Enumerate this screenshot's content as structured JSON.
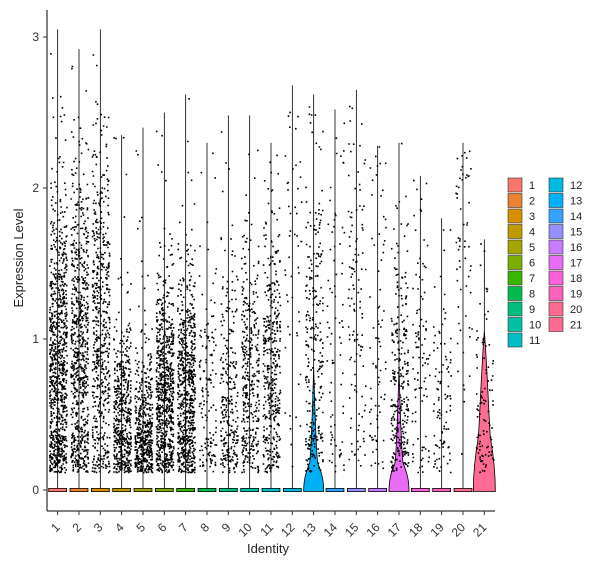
{
  "chart_data": {
    "type": "violin",
    "xlabel": "Identity",
    "ylabel": "Expression Level",
    "categories": [
      "1",
      "2",
      "3",
      "4",
      "5",
      "6",
      "7",
      "8",
      "9",
      "10",
      "11",
      "12",
      "13",
      "14",
      "15",
      "16",
      "17",
      "18",
      "19",
      "20",
      "21"
    ],
    "colors": [
      "#F8766D",
      "#EA8331",
      "#D89000",
      "#C09B00",
      "#A3A500",
      "#7CAE00",
      "#39B600",
      "#00BB4E",
      "#00BF7D",
      "#00C1A3",
      "#00BFC4",
      "#00BAE0",
      "#00B0F6",
      "#35A2FF",
      "#9590FF",
      "#C77CFF",
      "#E76BF3",
      "#FA62DB",
      "#FF62BC",
      "#FF6C91",
      "#FF6C91"
    ],
    "yticks": [
      0,
      1,
      2,
      3
    ],
    "ylim": [
      -0.15,
      3.15
    ],
    "series": [
      {
        "name": "1",
        "max": 3.05,
        "density": 1.0,
        "center": 0.8,
        "spread": 0.55
      },
      {
        "name": "2",
        "max": 2.92,
        "density": 0.8,
        "center": 0.9,
        "spread": 0.6
      },
      {
        "name": "3",
        "max": 3.05,
        "density": 0.6,
        "center": 1.0,
        "spread": 0.65
      },
      {
        "name": "4",
        "max": 2.35,
        "density": 0.55,
        "center": 0.45,
        "spread": 0.35
      },
      {
        "name": "5",
        "max": 2.4,
        "density": 0.55,
        "center": 0.35,
        "spread": 0.3
      },
      {
        "name": "6",
        "max": 2.5,
        "density": 0.8,
        "center": 0.65,
        "spread": 0.4
      },
      {
        "name": "7",
        "max": 2.62,
        "density": 0.8,
        "center": 0.6,
        "spread": 0.4
      },
      {
        "name": "8",
        "max": 2.3,
        "density": 0.15,
        "center": 0.6,
        "spread": 0.45
      },
      {
        "name": "9",
        "max": 2.48,
        "density": 0.3,
        "center": 0.55,
        "spread": 0.45
      },
      {
        "name": "10",
        "max": 2.48,
        "density": 0.4,
        "center": 0.7,
        "spread": 0.45
      },
      {
        "name": "11",
        "max": 2.3,
        "density": 0.45,
        "center": 0.8,
        "spread": 0.5
      },
      {
        "name": "12",
        "max": 2.68,
        "density": 0.05,
        "center": 1.5,
        "spread": 0.7
      },
      {
        "name": "13",
        "max": 2.62,
        "density": 0.3,
        "center": 0.8,
        "spread": 0.6
      },
      {
        "name": "14",
        "max": 2.52,
        "density": 0.08,
        "center": 1.0,
        "spread": 0.7
      },
      {
        "name": "15",
        "max": 2.65,
        "density": 0.12,
        "center": 1.1,
        "spread": 0.7
      },
      {
        "name": "16",
        "max": 2.28,
        "density": 0.08,
        "center": 0.9,
        "spread": 0.6
      },
      {
        "name": "17",
        "max": 2.3,
        "density": 0.3,
        "center": 0.7,
        "spread": 0.5
      },
      {
        "name": "18",
        "max": 2.08,
        "density": 0.1,
        "center": 0.8,
        "spread": 0.6
      },
      {
        "name": "19",
        "max": 1.8,
        "density": 0.1,
        "center": 0.5,
        "spread": 0.4
      },
      {
        "name": "20",
        "max": 2.3,
        "density": 0.06,
        "center": 1.5,
        "spread": 0.7
      },
      {
        "name": "21",
        "max": 1.66,
        "density": 0.1,
        "center": 0.5,
        "spread": 0.4
      }
    ],
    "legend": {
      "position": "right",
      "columns": 2
    },
    "grid": false
  }
}
